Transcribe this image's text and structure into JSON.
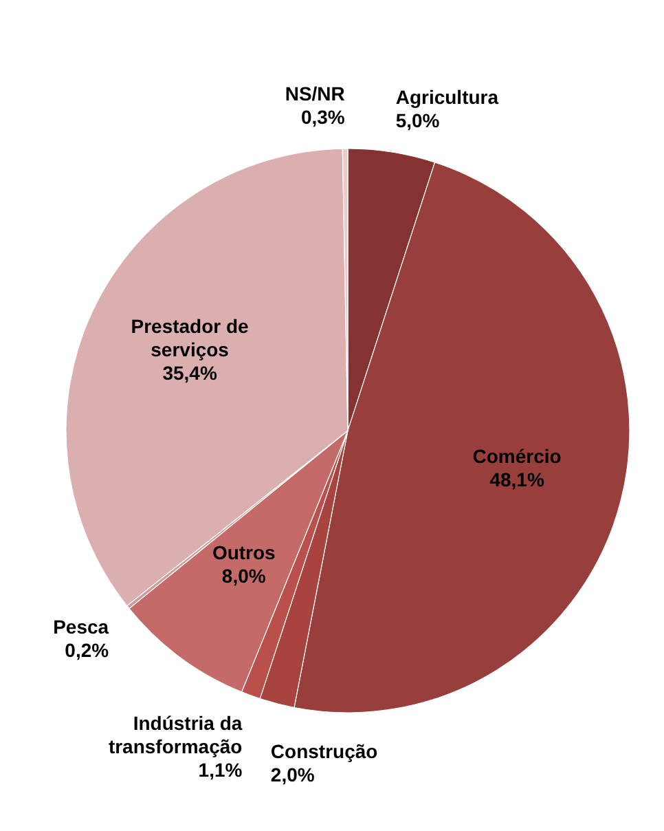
{
  "chart_data": {
    "type": "pie",
    "categories": [
      "Agricultura",
      "Comércio",
      "Construção",
      "Indústria da transformação",
      "Outros",
      "Pesca",
      "Prestador de serviços",
      "NS/NR"
    ],
    "values": [
      5.0,
      48.1,
      2.0,
      1.1,
      8.0,
      0.2,
      35.4,
      0.3
    ],
    "value_labels": [
      "5,0%",
      "48,1%",
      "2,0%",
      "1,1%",
      "8,0%",
      "0,2%",
      "35,4%",
      "0,3%"
    ],
    "colors": [
      "#843332",
      "#983e3c",
      "#a8433f",
      "#b9504c",
      "#c46a68",
      "#d09a98",
      "#dbafaf",
      "#e8cccc"
    ],
    "legend": false
  }
}
